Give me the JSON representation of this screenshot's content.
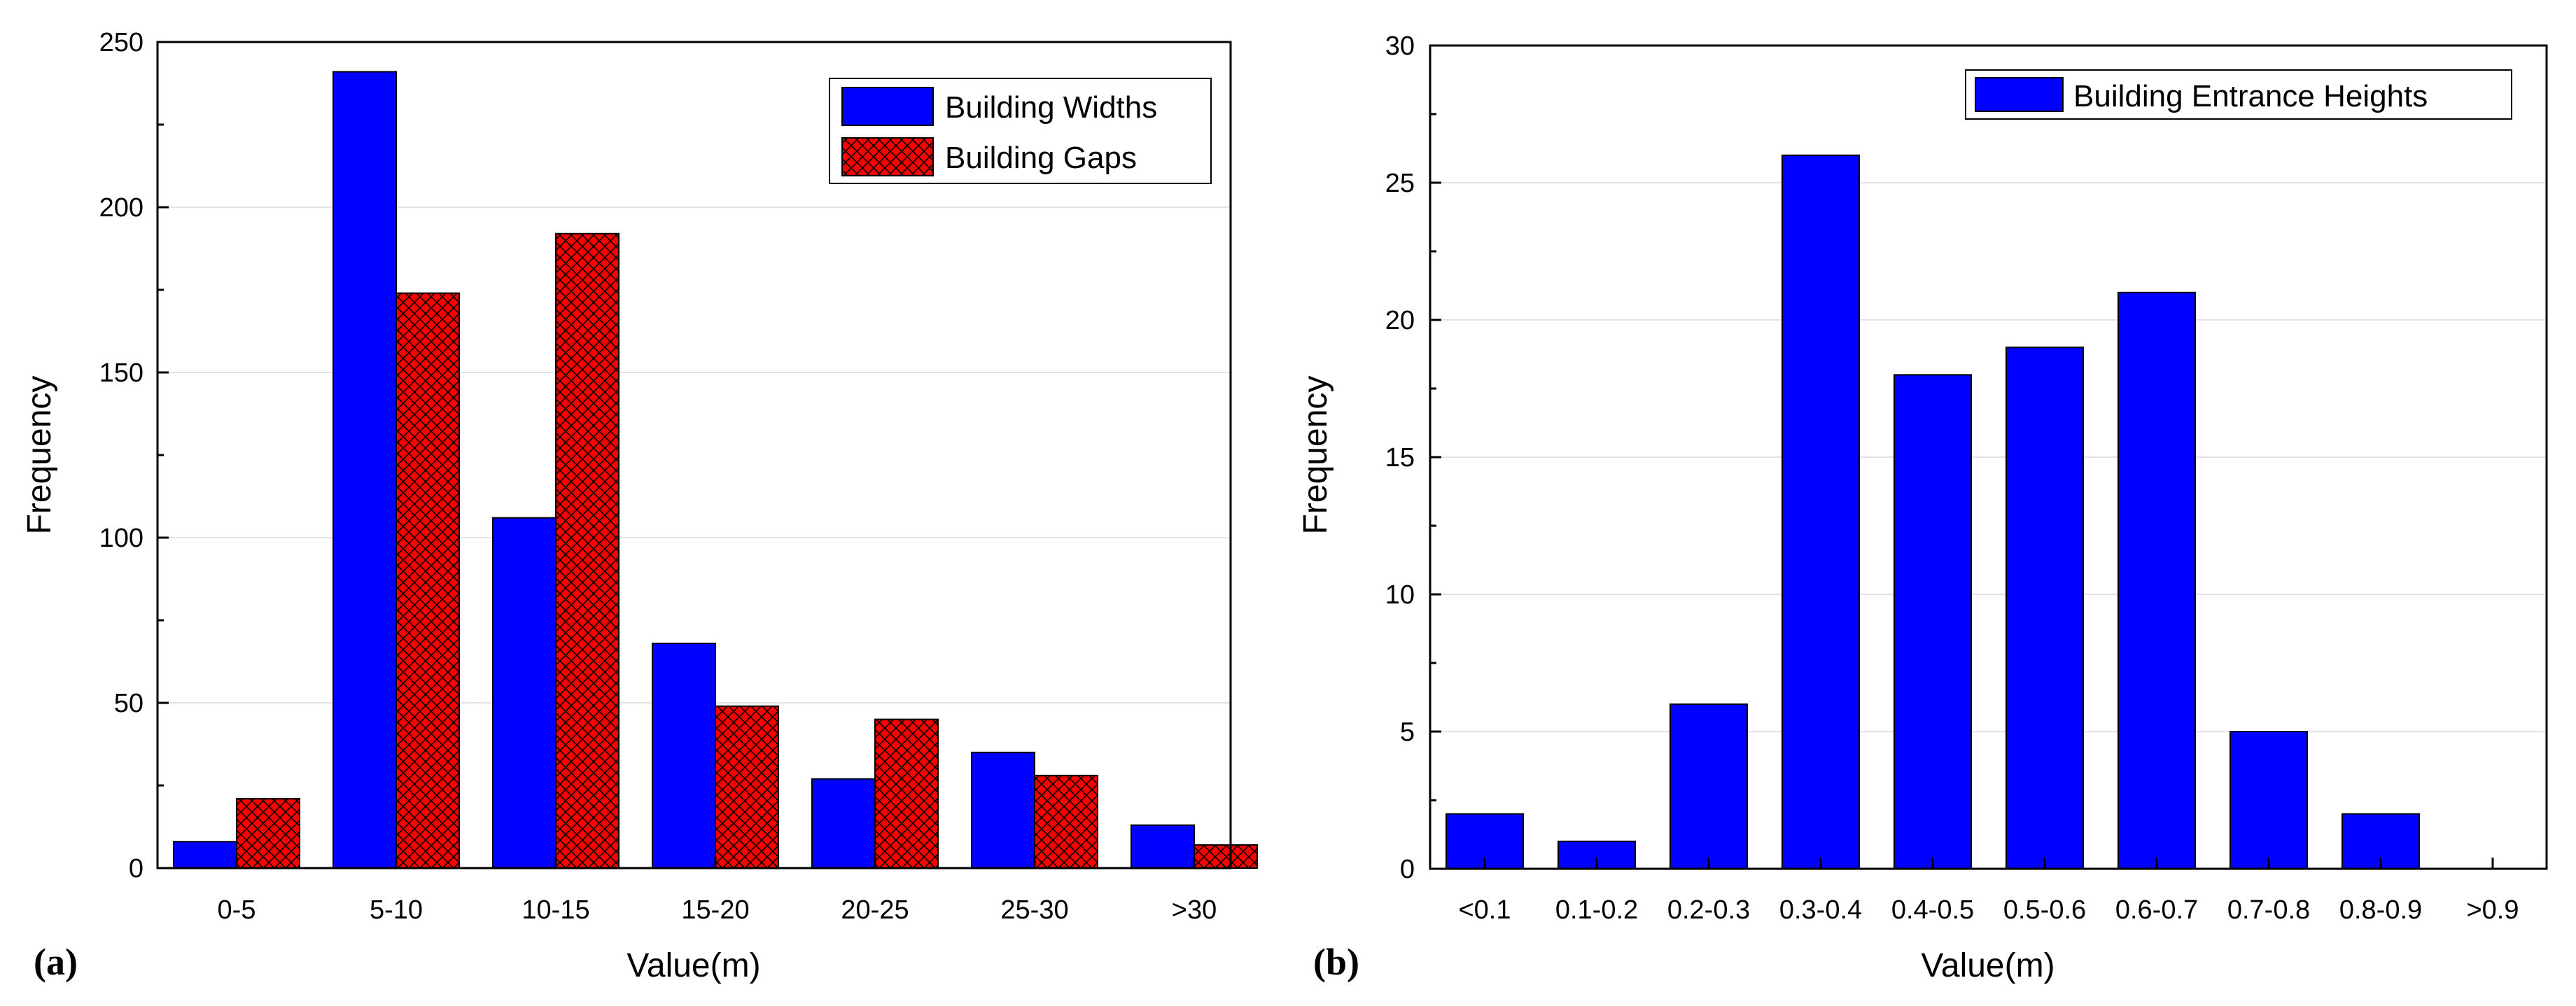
{
  "chart_data": [
    {
      "panel_label": "(a)",
      "type": "bar",
      "xlabel": "Value(m)",
      "ylabel": "Frequency",
      "ylim": [
        0,
        250
      ],
      "yticks": [
        0,
        50,
        100,
        150,
        200,
        250
      ],
      "categories": [
        "0-5",
        "5-10",
        "10-15",
        "15-20",
        "20-25",
        "25-30",
        ">30"
      ],
      "grid": true,
      "legend_position": "top-right",
      "series": [
        {
          "name": "Building Widths",
          "color": "#0000ff",
          "pattern": "solid",
          "values": [
            8,
            241,
            106,
            68,
            27,
            35,
            13
          ]
        },
        {
          "name": "Building Gaps",
          "color": "#ff0000",
          "pattern": "crosshatch",
          "values": [
            21,
            174,
            192,
            49,
            45,
            28,
            7
          ]
        }
      ]
    },
    {
      "panel_label": "(b)",
      "type": "bar",
      "xlabel": "Value(m)",
      "ylabel": "Frequency",
      "ylim": [
        0,
        30
      ],
      "yticks": [
        0,
        5,
        10,
        15,
        20,
        25,
        30
      ],
      "categories": [
        "<0.1",
        "0.1-0.2",
        "0.2-0.3",
        "0.3-0.4",
        "0.4-0.5",
        "0.5-0.6",
        "0.6-0.7",
        "0.7-0.8",
        "0.8-0.9",
        ">0.9"
      ],
      "grid": true,
      "legend_position": "top-right",
      "series": [
        {
          "name": "Building Entrance Heights",
          "color": "#0000ff",
          "pattern": "solid",
          "values": [
            2,
            1,
            6,
            26,
            18,
            19,
            21,
            5,
            2,
            0
          ]
        }
      ]
    }
  ]
}
